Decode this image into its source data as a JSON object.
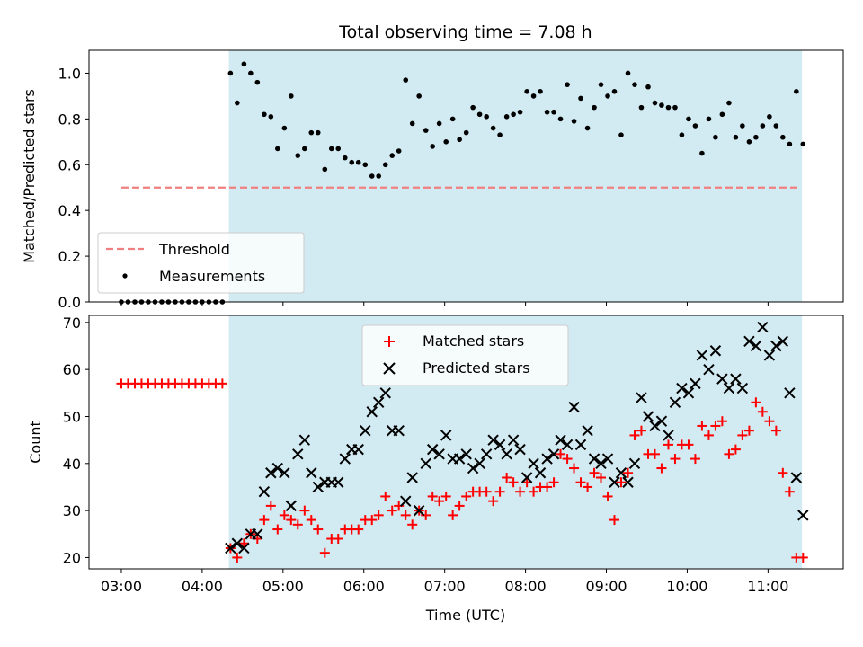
{
  "chart_data": [
    {
      "type": "scatter",
      "title": "Total observing time = 7.08 h",
      "xlabel": "",
      "ylabel": "Matched/Predicted stars",
      "ylim": [
        0,
        1.1
      ],
      "y_ticks": [
        "0.0",
        "0.2",
        "0.4",
        "0.6",
        "0.8",
        "1.0"
      ],
      "x_range_hours": [
        2.6,
        11.93
      ],
      "shaded_span_hours": [
        4.33,
        11.42
      ],
      "shade_color": "#add8e6",
      "threshold": {
        "name": "Threshold",
        "y": 0.5,
        "x_from": 3.0,
        "x_to": 11.4,
        "color": "#f08080"
      },
      "legend": {
        "location": "lower left",
        "entries": [
          "Threshold",
          "Measurements"
        ]
      },
      "series": [
        {
          "name": "Measurements",
          "marker": "dot",
          "color": "#000000",
          "x": [
            3.0,
            3.083,
            3.167,
            3.25,
            3.333,
            3.417,
            3.5,
            3.583,
            3.667,
            3.75,
            3.833,
            3.917,
            4.0,
            4.083,
            4.167,
            4.25,
            4.35,
            4.433,
            4.517,
            4.6,
            4.683,
            4.767,
            4.85,
            4.933,
            5.017,
            5.1,
            5.183,
            5.267,
            5.35,
            5.433,
            5.517,
            5.6,
            5.683,
            5.767,
            5.85,
            5.933,
            6.017,
            6.1,
            6.183,
            6.267,
            6.35,
            6.433,
            6.517,
            6.6,
            6.683,
            6.767,
            6.85,
            6.933,
            7.017,
            7.1,
            7.183,
            7.267,
            7.35,
            7.433,
            7.517,
            7.6,
            7.683,
            7.767,
            7.85,
            7.933,
            8.017,
            8.1,
            8.183,
            8.267,
            8.35,
            8.433,
            8.517,
            8.6,
            8.683,
            8.767,
            8.85,
            8.933,
            9.017,
            9.1,
            9.183,
            9.267,
            9.35,
            9.433,
            9.517,
            9.6,
            9.683,
            9.767,
            9.85,
            9.933,
            10.017,
            10.1,
            10.183,
            10.267,
            10.35,
            10.433,
            10.517,
            10.6,
            10.683,
            10.767,
            10.85,
            10.933,
            11.017,
            11.1,
            11.183,
            11.267,
            11.35,
            11.433
          ],
          "y": [
            0,
            0,
            0,
            0,
            0,
            0,
            0,
            0,
            0,
            0,
            0,
            0,
            0,
            0,
            0,
            0,
            1.0,
            0.87,
            1.04,
            1.0,
            0.96,
            0.82,
            0.81,
            0.67,
            0.76,
            0.9,
            0.64,
            0.67,
            0.74,
            0.74,
            0.58,
            0.67,
            0.67,
            0.63,
            0.61,
            0.61,
            0.6,
            0.55,
            0.55,
            0.6,
            0.64,
            0.66,
            0.97,
            0.78,
            0.9,
            0.75,
            0.68,
            0.78,
            0.7,
            0.8,
            0.71,
            0.74,
            0.85,
            0.82,
            0.81,
            0.76,
            0.73,
            0.81,
            0.82,
            0.83,
            0.92,
            0.9,
            0.92,
            0.83,
            0.83,
            0.8,
            0.95,
            0.79,
            0.89,
            0.76,
            0.85,
            0.95,
            0.9,
            0.92,
            0.73,
            1.0,
            0.95,
            0.85,
            0.94,
            0.87,
            0.86,
            0.85,
            0.85,
            0.73,
            0.8,
            0.77,
            0.65,
            0.8,
            0.72,
            0.82,
            0.87,
            0.72,
            0.77,
            0.7,
            0.72,
            0.77,
            0.81,
            0.77,
            0.72,
            0.69,
            0.92,
            0.69
          ]
        }
      ]
    },
    {
      "type": "scatter",
      "title": "",
      "xlabel": "Time (UTC)",
      "ylabel": "Count",
      "ylim": [
        17.6,
        71.5
      ],
      "y_ticks": [
        "20",
        "30",
        "40",
        "50",
        "60",
        "70"
      ],
      "x_ticks": [
        "03:00",
        "04:00",
        "05:00",
        "06:00",
        "07:00",
        "08:00",
        "09:00",
        "10:00",
        "11:00"
      ],
      "x_tick_hours": [
        3,
        4,
        5,
        6,
        7,
        8,
        9,
        10,
        11
      ],
      "x_range_hours": [
        2.6,
        11.93
      ],
      "shaded_span_hours": [
        4.33,
        11.42
      ],
      "shade_color": "#add8e6",
      "legend": {
        "location": "upper center",
        "entries": [
          "Matched stars",
          "Predicted stars"
        ]
      },
      "series": [
        {
          "name": "Matched stars",
          "marker": "plus",
          "color": "#ff0000",
          "x": [
            3.0,
            3.083,
            3.167,
            3.25,
            3.333,
            3.417,
            3.5,
            3.583,
            3.667,
            3.75,
            3.833,
            3.917,
            4.0,
            4.083,
            4.167,
            4.25,
            4.35,
            4.433,
            4.517,
            4.6,
            4.683,
            4.767,
            4.85,
            4.933,
            5.017,
            5.1,
            5.183,
            5.267,
            5.35,
            5.433,
            5.517,
            5.6,
            5.683,
            5.767,
            5.85,
            5.933,
            6.017,
            6.1,
            6.183,
            6.267,
            6.35,
            6.433,
            6.517,
            6.6,
            6.683,
            6.767,
            6.85,
            6.933,
            7.017,
            7.1,
            7.183,
            7.267,
            7.35,
            7.433,
            7.517,
            7.6,
            7.683,
            7.767,
            7.85,
            7.933,
            8.017,
            8.1,
            8.183,
            8.267,
            8.35,
            8.433,
            8.517,
            8.6,
            8.683,
            8.767,
            8.85,
            8.933,
            9.017,
            9.1,
            9.183,
            9.267,
            9.35,
            9.433,
            9.517,
            9.6,
            9.683,
            9.767,
            9.85,
            9.933,
            10.017,
            10.1,
            10.183,
            10.267,
            10.35,
            10.433,
            10.517,
            10.6,
            10.683,
            10.767,
            10.85,
            10.933,
            11.017,
            11.1,
            11.183,
            11.267,
            11.35,
            11.433
          ],
          "y": [
            57,
            57,
            57,
            57,
            57,
            57,
            57,
            57,
            57,
            57,
            57,
            57,
            57,
            57,
            57,
            57,
            22,
            20,
            23,
            25,
            24,
            28,
            31,
            26,
            29,
            28,
            27,
            30,
            28,
            26,
            21,
            24,
            24,
            26,
            26,
            26,
            28,
            28,
            29,
            33,
            30,
            31,
            29,
            27,
            30,
            29,
            33,
            32,
            33,
            29,
            31,
            33,
            34,
            34,
            34,
            32,
            34,
            37,
            36,
            34,
            36,
            34,
            35,
            35,
            36,
            42,
            41,
            39,
            36,
            35,
            38,
            37,
            33,
            28,
            36,
            38,
            46,
            47,
            42,
            42,
            39,
            44,
            41,
            44,
            44,
            41,
            48,
            46,
            48,
            49,
            42,
            43,
            46,
            47,
            53,
            51,
            49,
            47,
            38,
            34,
            20,
            20
          ]
        },
        {
          "name": "Predicted stars",
          "marker": "x",
          "color": "#000000",
          "x": [
            4.35,
            4.433,
            4.517,
            4.6,
            4.683,
            4.767,
            4.85,
            4.933,
            5.017,
            5.1,
            5.183,
            5.267,
            5.35,
            5.433,
            5.517,
            5.6,
            5.683,
            5.767,
            5.85,
            5.933,
            6.017,
            6.1,
            6.183,
            6.267,
            6.35,
            6.433,
            6.517,
            6.6,
            6.683,
            6.767,
            6.85,
            6.933,
            7.017,
            7.1,
            7.183,
            7.267,
            7.35,
            7.433,
            7.517,
            7.6,
            7.683,
            7.767,
            7.85,
            7.933,
            8.017,
            8.1,
            8.183,
            8.267,
            8.35,
            8.433,
            8.517,
            8.6,
            8.683,
            8.767,
            8.85,
            8.933,
            9.017,
            9.1,
            9.183,
            9.267,
            9.35,
            9.433,
            9.517,
            9.6,
            9.683,
            9.767,
            9.85,
            9.933,
            10.017,
            10.1,
            10.183,
            10.267,
            10.35,
            10.433,
            10.517,
            10.6,
            10.683,
            10.767,
            10.85,
            10.933,
            11.017,
            11.1,
            11.183,
            11.267,
            11.35,
            11.433
          ],
          "y": [
            22,
            23,
            22,
            25,
            25,
            34,
            38,
            39,
            38,
            31,
            42,
            45,
            38,
            35,
            36,
            36,
            36,
            41,
            43,
            43,
            47,
            51,
            53,
            55,
            47,
            47,
            32,
            37,
            30,
            40,
            43,
            42,
            46,
            41,
            41,
            42,
            39,
            40,
            42,
            45,
            44,
            42,
            45,
            43,
            37,
            40,
            38,
            41,
            42,
            45,
            44,
            52,
            44,
            47,
            41,
            40,
            41,
            36,
            38,
            36,
            40,
            54,
            50,
            48,
            49,
            46,
            53,
            56,
            55,
            57,
            63,
            60,
            64,
            58,
            56,
            58,
            56,
            66,
            65,
            69,
            63,
            65,
            66,
            55,
            37,
            29
          ]
        }
      ]
    }
  ]
}
